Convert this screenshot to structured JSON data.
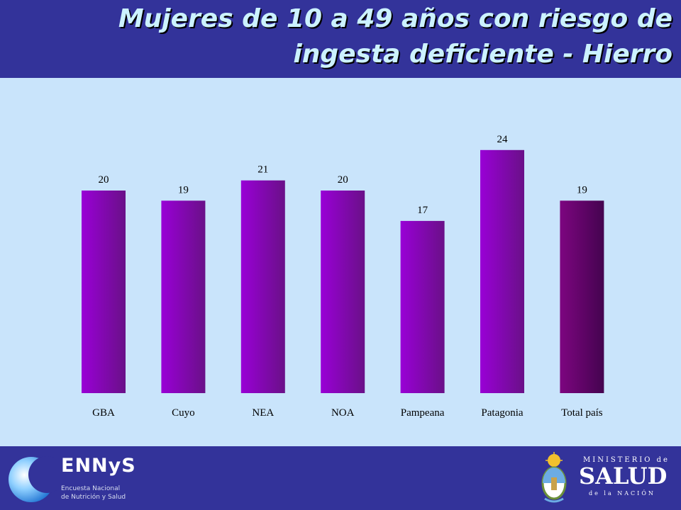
{
  "header": {
    "title_line1": "Mujeres de 10 a 49 años con riesgo de",
    "title_line2": "ingesta deficiente - Hierro"
  },
  "chart_data": {
    "type": "bar",
    "categories": [
      "GBA",
      "Cuyo",
      "NEA",
      "NOA",
      "Pampeana",
      "Patagonia",
      "Total país"
    ],
    "values": [
      20,
      19,
      21,
      20,
      17,
      24,
      19
    ],
    "data_labels": [
      "20",
      "19",
      "21",
      "20",
      "17",
      "24",
      "19"
    ],
    "ylim": [
      0,
      24
    ],
    "grid": false,
    "legend": "none",
    "colors": {
      "bar_light": "#9900d6",
      "bar_dark": "#6a1088",
      "total_light": "#7d0580",
      "total_dark": "#44044f"
    }
  },
  "footer": {
    "logo_name": "ENNyS",
    "logo_sub_line1": "Encuesta Nacional",
    "logo_sub_line2": "de Nutrición y Salud",
    "ministry_top": "MINISTERIO de",
    "ministry_main": "SALUD",
    "ministry_bottom": "de la NACIÓN"
  }
}
